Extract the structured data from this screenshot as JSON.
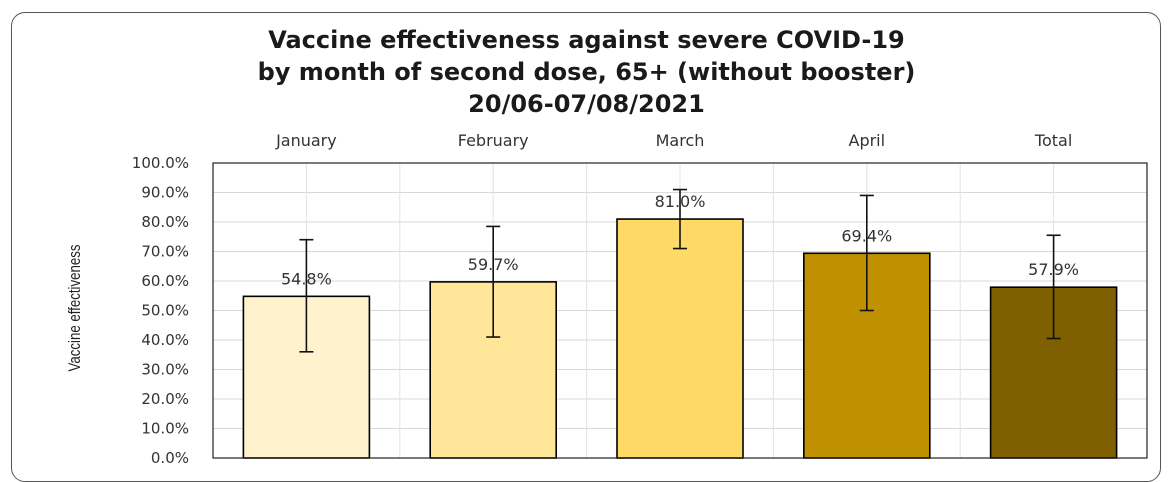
{
  "chart_data": {
    "type": "bar",
    "title": [
      "Vaccine  effectiveness against severe COVID-19",
      "by month of second dose, 65+ (without booster)",
      "20/06-07/08/2021"
    ],
    "ylabel": "Vaccine effectiveness",
    "xlabel": "",
    "categories": [
      "January",
      "February",
      "March",
      "April",
      "Total"
    ],
    "values": [
      54.8,
      59.7,
      81.0,
      69.4,
      57.9
    ],
    "data_labels": [
      "54.8%",
      "59.7%",
      "81.0%",
      "69.4%",
      "57.9%"
    ],
    "error_low": [
      36.0,
      41.0,
      71.0,
      50.0,
      40.5
    ],
    "error_high": [
      74.0,
      78.5,
      91.0,
      89.0,
      75.5
    ],
    "colors": [
      "#fff2cc",
      "#ffe699",
      "#ffd966",
      "#bf9000",
      "#7f6000"
    ],
    "ylim": [
      0,
      100
    ],
    "yticks": [
      "0.0%",
      "10.0%",
      "20.0%",
      "30.0%",
      "40.0%",
      "50.0%",
      "60.0%",
      "70.0%",
      "80.0%",
      "90.0%",
      "100.0%"
    ],
    "category_labels_position": "top",
    "grid": true,
    "legend": "none"
  }
}
